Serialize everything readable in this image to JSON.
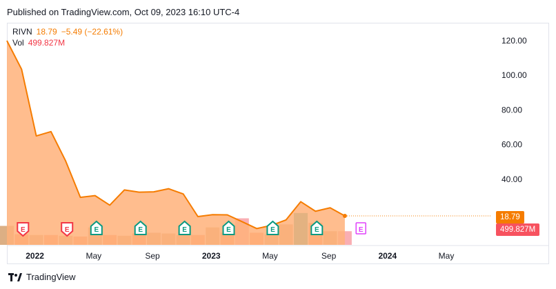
{
  "header": {
    "published": "Published on TradingView.com, Oct 09, 2023 16:10 UTC-4"
  },
  "legend": {
    "symbol": "RIVN",
    "price": "18.79",
    "change": "−5.49 (−22.61%)",
    "vol_label": "Vol",
    "vol_value": "499.827M"
  },
  "colors": {
    "line": "#f57c00",
    "area": "#ffb27a",
    "vol_up": "#26a69a",
    "vol_down": "#f7525f",
    "vol_neutral": "#d6a16f",
    "earnings": "#089981",
    "earnings_down": "#f23645",
    "earnings_future": "#e040fb"
  },
  "badges": {
    "price": "18.79",
    "volume": "499.827M"
  },
  "footer": {
    "brand": "TradingView"
  },
  "chart_data": {
    "type": "area",
    "title": "",
    "symbol": "RIVN",
    "x_labels": [
      "2022",
      "May",
      "Sep",
      "2023",
      "May",
      "Sep",
      "2024",
      "May"
    ],
    "y_ticks": [
      "120.00",
      "100.00",
      "80.00",
      "60.00",
      "40.00"
    ],
    "ylim": [
      0,
      130
    ],
    "last_price": 18.79,
    "series": [
      {
        "name": "RIVN",
        "values": [
          {
            "x": "2021-11",
            "y": 120
          },
          {
            "x": "2021-12",
            "y": 103.5
          },
          {
            "x": "2022-01",
            "y": 65
          },
          {
            "x": "2022-02",
            "y": 67.5
          },
          {
            "x": "2022-03",
            "y": 50.5
          },
          {
            "x": "2022-04",
            "y": 29.5
          },
          {
            "x": "2022-05",
            "y": 30.5
          },
          {
            "x": "2022-06",
            "y": 25
          },
          {
            "x": "2022-07",
            "y": 33.8
          },
          {
            "x": "2022-08",
            "y": 32.5
          },
          {
            "x": "2022-09",
            "y": 32.7
          },
          {
            "x": "2022-10",
            "y": 34.5
          },
          {
            "x": "2022-11",
            "y": 31.5
          },
          {
            "x": "2022-12",
            "y": 18.4
          },
          {
            "x": "2023-01",
            "y": 19.5
          },
          {
            "x": "2023-02",
            "y": 19.4
          },
          {
            "x": "2023-03",
            "y": 15.5
          },
          {
            "x": "2023-04",
            "y": 11.5
          },
          {
            "x": "2023-05",
            "y": 13.3
          },
          {
            "x": "2023-06",
            "y": 16.5
          },
          {
            "x": "2023-07",
            "y": 27
          },
          {
            "x": "2023-08",
            "y": 21.5
          },
          {
            "x": "2023-09",
            "y": 23.5
          },
          {
            "x": "2023-10",
            "y": 18.79
          }
        ]
      }
    ],
    "volume": {
      "name": "Vol",
      "unit": "relative",
      "values": [
        0.25,
        0.14,
        0.13,
        0.13,
        0.12,
        0.11,
        0.23,
        0.13,
        0.12,
        0.15,
        0.16,
        0.15,
        0.13,
        0.13,
        0.23,
        0.16,
        0.35,
        0.16,
        0.14,
        0.27,
        0.42,
        0.29,
        0.18,
        0.18
      ],
      "colors": [
        "n",
        "d",
        "n",
        "d",
        "n",
        "d",
        "n",
        "d",
        "n",
        "d",
        "n",
        "n",
        "n",
        "d",
        "n",
        "d",
        "dl",
        "d",
        "n",
        "n",
        "u",
        "d",
        "n",
        "dl"
      ]
    },
    "earnings_markers": [
      {
        "x": "2021-12",
        "kind": "down"
      },
      {
        "x": "2022-03",
        "kind": "down"
      },
      {
        "x": "2022-05",
        "kind": "up"
      },
      {
        "x": "2022-08",
        "kind": "up"
      },
      {
        "x": "2022-11",
        "kind": "up"
      },
      {
        "x": "2023-02",
        "kind": "up"
      },
      {
        "x": "2023-05",
        "kind": "up"
      },
      {
        "x": "2023-08",
        "kind": "up"
      },
      {
        "x": "2023-11",
        "kind": "future"
      }
    ],
    "grid": false,
    "legend": "top-left"
  }
}
